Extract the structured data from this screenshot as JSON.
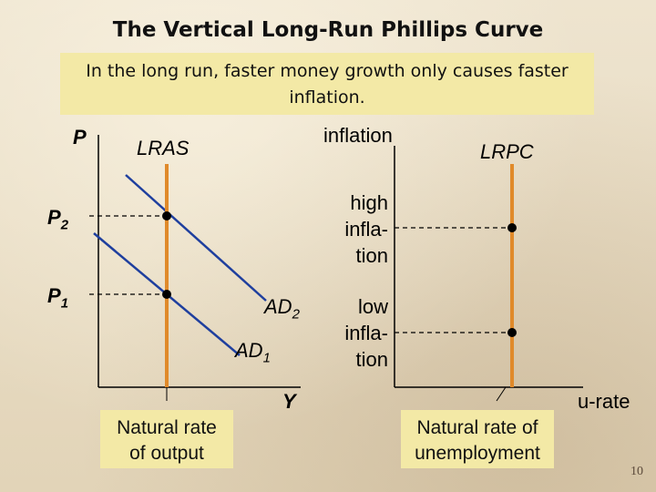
{
  "slide": {
    "title": "The Vertical Long-Run Phillips Curve",
    "subtitle": "In the long run, faster money growth only causes faster inflation.",
    "page_number": "10"
  },
  "left_graph": {
    "y_axis_label": "P",
    "x_axis_label": "Y",
    "lras_label": "LRAS",
    "ad2_label": "AD",
    "ad2_sub": "2",
    "ad1_label": "AD",
    "ad1_sub": "1",
    "p2_label": "P",
    "p2_sub": "2",
    "p1_label": "P",
    "p1_sub": "1",
    "natural_output_line1": "Natural rate",
    "natural_output_line2": "of output"
  },
  "right_graph": {
    "y_axis_label": "inflation",
    "x_axis_label": "u-rate",
    "lrpc_label": "LRPC",
    "high_line1": "high",
    "high_line2": "infla-",
    "high_line3": "tion",
    "low_line1": "low",
    "low_line2": "infla-",
    "low_line3": "tion",
    "natural_unemp_line1": "Natural rate of",
    "natural_unemp_line2": "unemployment"
  },
  "colors": {
    "vertical_line": "#e08a2a",
    "demand_curves": "#1f3f9e",
    "axes": "#000000",
    "highlight_box": "#f3e9a6"
  }
}
